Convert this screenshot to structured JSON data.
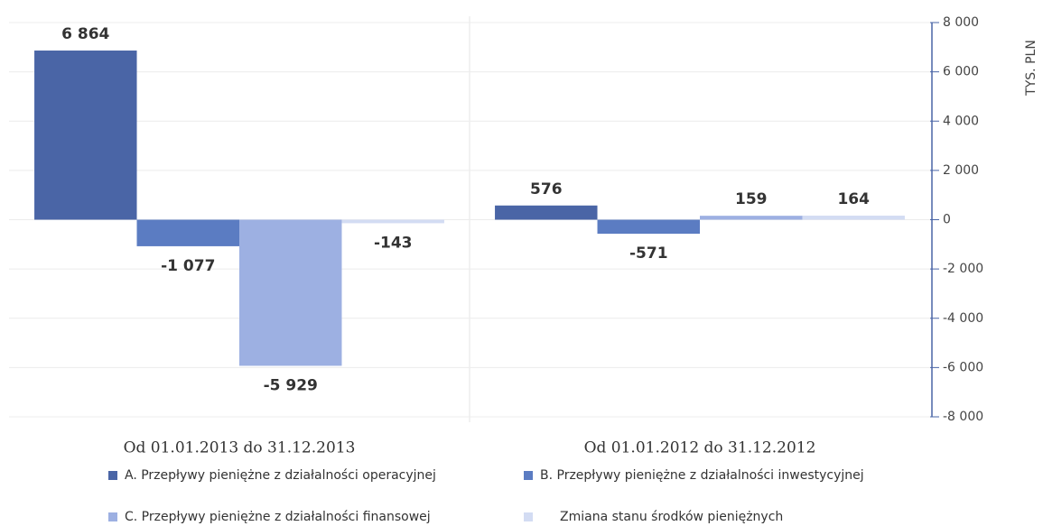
{
  "chart_data": {
    "type": "bar",
    "categories": [
      "Od 01.01.2013 do 31.12.2013",
      "Od 01.01.2012 do 31.12.2012"
    ],
    "series": [
      {
        "name": "A. Przepływy pieniężne z działalności operacyjnej",
        "color": "#4a65a6",
        "values": [
          6864,
          576
        ],
        "value_labels": [
          "6 864",
          "576"
        ]
      },
      {
        "name": "B. Przepływy pieniężne z działalności inwestycyjnej",
        "color": "#5b7cc2",
        "values": [
          -1077,
          -571
        ],
        "value_labels": [
          "-1 077",
          "-571"
        ]
      },
      {
        "name": "C. Przepływy pieniężne z działalności finansowej",
        "color": "#9db0e2",
        "values": [
          -5929,
          159
        ],
        "value_labels": [
          "-5 929",
          "159"
        ]
      },
      {
        "name": "Zmiana stanu środków pieniężnych",
        "color": "#d3dcf3",
        "values": [
          -143,
          164
        ],
        "value_labels": [
          "-143",
          "164"
        ]
      }
    ],
    "y_axis_label": "TYS. PLN",
    "ylim": [
      -8000,
      8000
    ],
    "yticks": [
      {
        "value": -8000,
        "label": "-8 000"
      },
      {
        "value": -6000,
        "label": "-6 000"
      },
      {
        "value": -4000,
        "label": "-4 000"
      },
      {
        "value": -2000,
        "label": "-2 000"
      },
      0,
      {
        "value": 2000,
        "label": "2 000"
      },
      {
        "value": 4000,
        "label": "4 000"
      },
      {
        "value": 6000,
        "label": "6 000"
      },
      {
        "value": 8000,
        "label": "8 000"
      }
    ],
    "grid": true,
    "axis_side": "right",
    "legend": "bottom"
  }
}
